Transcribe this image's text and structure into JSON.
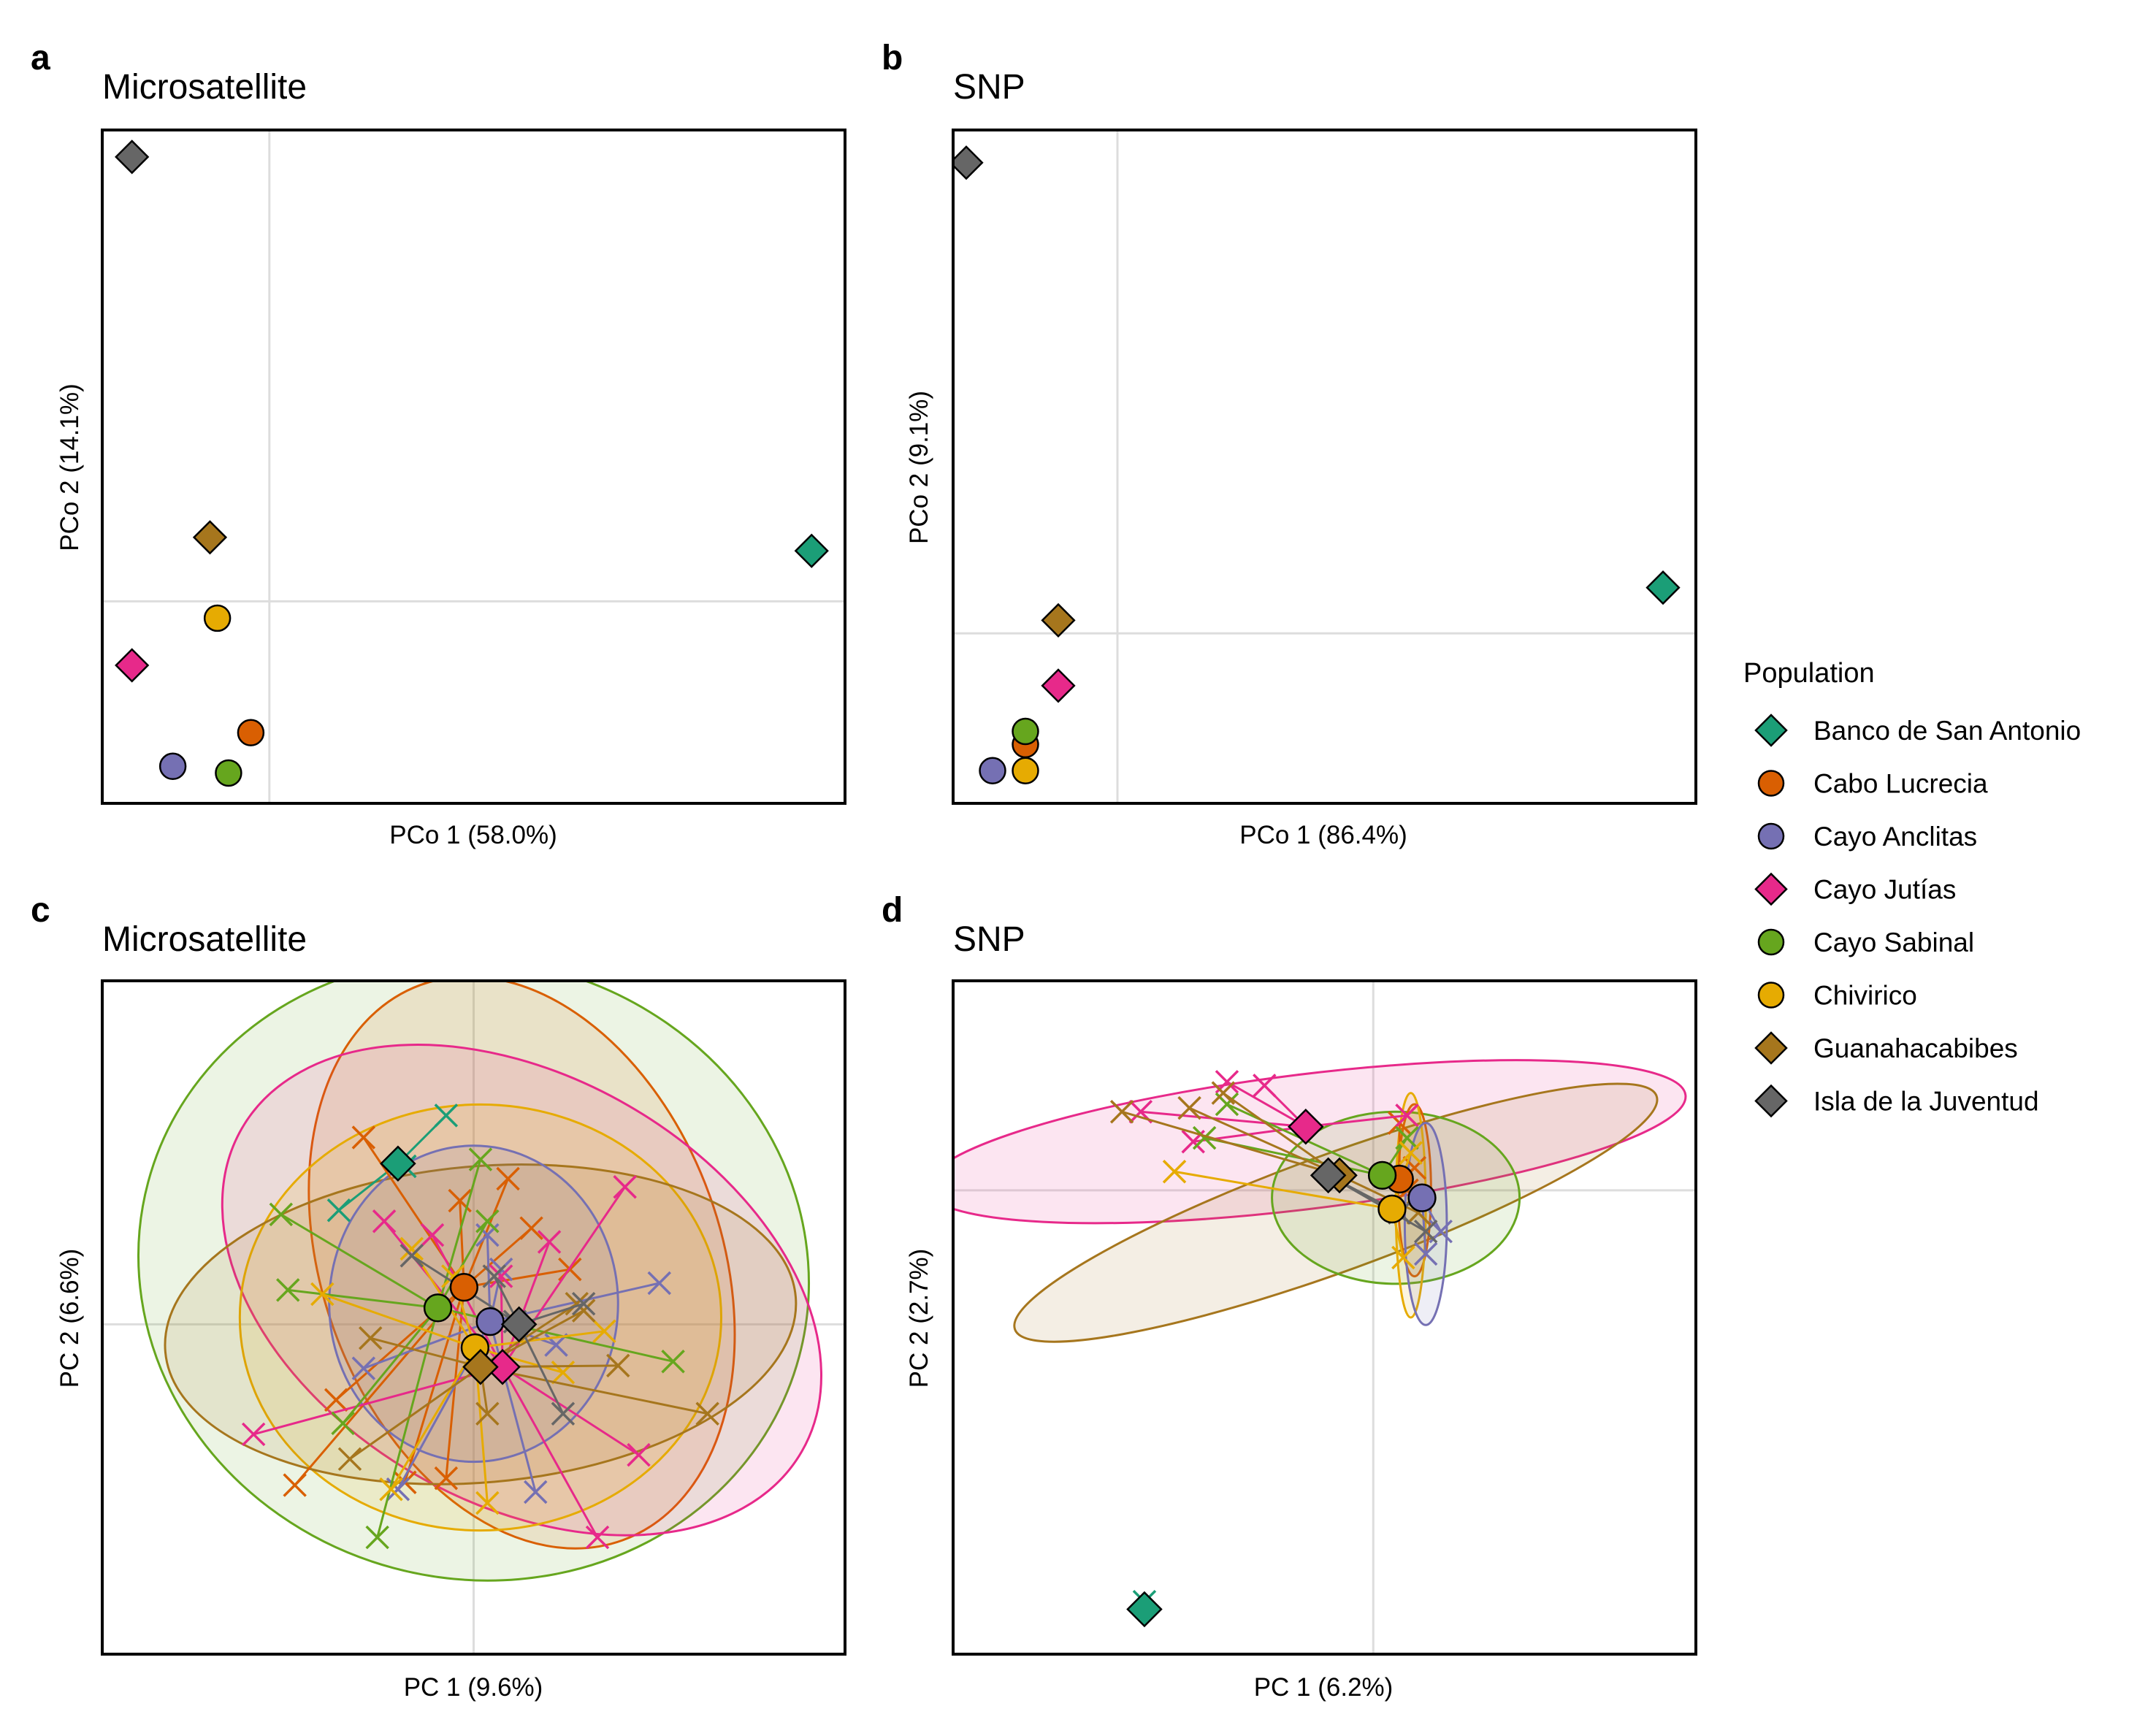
{
  "colors": {
    "Banco de San Antonio": "#1b9e77",
    "Cabo Lucrecia": "#d95f02",
    "Cayo Anclitas": "#7570b3",
    "Cayo Jutías": "#e7298a",
    "Cayo Sabinal": "#66a61e",
    "Chivirico": "#e6ab02",
    "Guanahacabibes": "#a6761d",
    "Isla de la Juventud": "#666666"
  },
  "legend": {
    "title": "Population",
    "items": [
      {
        "label": "Banco de San Antonio",
        "shape": "diamond"
      },
      {
        "label": "Cabo Lucrecia",
        "shape": "circle"
      },
      {
        "label": "Cayo Anclitas",
        "shape": "circle"
      },
      {
        "label": "Cayo Jutías",
        "shape": "diamond"
      },
      {
        "label": "Cayo Sabinal",
        "shape": "circle"
      },
      {
        "label": "Chivirico",
        "shape": "circle"
      },
      {
        "label": "Guanahacabibes",
        "shape": "diamond"
      },
      {
        "label": "Isla de la Juventud",
        "shape": "diamond"
      }
    ]
  },
  "chart_data": [
    {
      "panel": "a",
      "type": "scatter",
      "title": "Microsatellite",
      "xlabel": "PCo 1 (58.0%)",
      "ylabel": "PCo 2 (14.1%)",
      "xlim": [
        -0.45,
        1.55
      ],
      "ylim": [
        -0.6,
        1.4
      ],
      "grid": "zero-lines",
      "points": [
        {
          "pop": "Banco de San Antonio",
          "x": 1.46,
          "y": 0.15
        },
        {
          "pop": "Cabo Lucrecia",
          "x": -0.05,
          "y": -0.39
        },
        {
          "pop": "Cayo Anclitas",
          "x": -0.26,
          "y": -0.49
        },
        {
          "pop": "Cayo Jutías",
          "x": -0.37,
          "y": -0.19
        },
        {
          "pop": "Cayo Sabinal",
          "x": -0.11,
          "y": -0.51
        },
        {
          "pop": "Chivirico",
          "x": -0.14,
          "y": -0.05
        },
        {
          "pop": "Guanahacabibes",
          "x": -0.16,
          "y": 0.19
        },
        {
          "pop": "Isla de la Juventud",
          "x": -0.37,
          "y": 1.32
        }
      ]
    },
    {
      "panel": "b",
      "type": "scatter",
      "title": "SNP",
      "xlabel": "PCo 1 (86.4%)",
      "ylabel": "PCo 2 (9.1%)",
      "xlim": [
        -0.25,
        0.88
      ],
      "ylim": [
        -0.26,
        0.77
      ],
      "grid": "zero-lines",
      "points": [
        {
          "pop": "Banco de San Antonio",
          "x": 0.83,
          "y": 0.07
        },
        {
          "pop": "Cabo Lucrecia",
          "x": -0.14,
          "y": -0.17
        },
        {
          "pop": "Cayo Anclitas",
          "x": -0.19,
          "y": -0.21
        },
        {
          "pop": "Cayo Jutías",
          "x": -0.09,
          "y": -0.08
        },
        {
          "pop": "Cayo Sabinal",
          "x": -0.14,
          "y": -0.15
        },
        {
          "pop": "Chivirico",
          "x": -0.14,
          "y": -0.21
        },
        {
          "pop": "Guanahacabibes",
          "x": -0.09,
          "y": 0.02
        },
        {
          "pop": "Isla de la Juventud",
          "x": -0.23,
          "y": 0.72
        }
      ]
    },
    {
      "panel": "c",
      "type": "scatter",
      "title": "Microsatellite",
      "xlabel": "PC 1 (9.6%)",
      "ylabel": "PC 2 (6.6%)",
      "xlim": [
        -2.7,
        2.7
      ],
      "ylim": [
        -2.4,
        2.5
      ],
      "grid": "zero-lines",
      "centroids": [
        {
          "pop": "Banco de San Antonio",
          "x": -0.55,
          "y": 1.17
        },
        {
          "pop": "Cabo Lucrecia",
          "x": -0.07,
          "y": 0.27
        },
        {
          "pop": "Cayo Anclitas",
          "x": 0.12,
          "y": 0.02
        },
        {
          "pop": "Cayo Jutías",
          "x": 0.21,
          "y": -0.31
        },
        {
          "pop": "Cayo Sabinal",
          "x": -0.26,
          "y": 0.12
        },
        {
          "pop": "Chivirico",
          "x": 0.01,
          "y": -0.17
        },
        {
          "pop": "Guanahacabibes",
          "x": 0.05,
          "y": -0.31
        },
        {
          "pop": "Isla de la Juventud",
          "x": 0.33,
          "y": 0.0
        }
      ],
      "ellipses": [
        {
          "pop": "Cayo Sabinal",
          "cx": 0.0,
          "cy": 0.4,
          "rx": 2.45,
          "ry": 2.25,
          "angle": -15
        },
        {
          "pop": "Cabo Lucrecia",
          "cx": 0.35,
          "cy": 0.45,
          "rx": 1.45,
          "ry": 2.15,
          "angle": 20
        },
        {
          "pop": "Cayo Jutías",
          "cx": 0.35,
          "cy": 0.25,
          "rx": 2.35,
          "ry": 1.55,
          "angle": -30
        },
        {
          "pop": "Chivirico",
          "cx": 0.05,
          "cy": 0.05,
          "rx": 1.75,
          "ry": 1.55,
          "angle": 0
        },
        {
          "pop": "Guanahacabibes",
          "cx": 0.05,
          "cy": 0.0,
          "rx": 2.3,
          "ry": 1.15,
          "angle": 5
        },
        {
          "pop": "Cayo Anclitas",
          "cx": 0.0,
          "cy": 0.15,
          "rx": 1.05,
          "ry": 1.15,
          "angle": 0
        }
      ],
      "samples": [
        {
          "pop": "Banco de San Antonio",
          "pts": [
            [
              -0.2,
              1.52
            ],
            [
              -0.98,
              0.83
            ],
            [
              -0.5,
              1.15
            ]
          ]
        },
        {
          "pop": "Cabo Lucrecia",
          "pts": [
            [
              -0.8,
              1.36
            ],
            [
              0.25,
              1.06
            ],
            [
              0.7,
              0.4
            ],
            [
              -1.0,
              -0.55
            ],
            [
              -1.3,
              -1.17
            ],
            [
              -0.5,
              -1.15
            ],
            [
              -0.2,
              -1.12
            ],
            [
              0.42,
              0.7
            ],
            [
              -0.1,
              0.9
            ]
          ]
        },
        {
          "pop": "Cayo Anclitas",
          "pts": [
            [
              0.1,
              0.65
            ],
            [
              1.35,
              0.3
            ],
            [
              -0.8,
              -0.32
            ],
            [
              0.6,
              -0.15
            ],
            [
              -0.55,
              -1.2
            ],
            [
              0.45,
              -1.22
            ],
            [
              0.2,
              0.4
            ]
          ]
        },
        {
          "pop": "Cayo Jutías",
          "pts": [
            [
              -0.65,
              0.75
            ],
            [
              0.2,
              0.35
            ],
            [
              1.1,
              1.0
            ],
            [
              -1.6,
              -0.8
            ],
            [
              1.2,
              -0.95
            ],
            [
              0.9,
              -1.55
            ],
            [
              -0.3,
              0.65
            ],
            [
              0.55,
              0.6
            ]
          ]
        },
        {
          "pop": "Cayo Sabinal",
          "pts": [
            [
              -1.4,
              0.8
            ],
            [
              -1.35,
              0.25
            ],
            [
              0.05,
              1.2
            ],
            [
              1.45,
              -0.27
            ],
            [
              -0.95,
              -0.72
            ],
            [
              -0.7,
              -1.55
            ],
            [
              0.1,
              0.75
            ]
          ]
        },
        {
          "pop": "Chivirico",
          "pts": [
            [
              -1.1,
              0.22
            ],
            [
              -0.15,
              0.35
            ],
            [
              0.95,
              -0.05
            ],
            [
              0.65,
              -0.35
            ],
            [
              -0.6,
              -1.2
            ],
            [
              0.1,
              -1.3
            ],
            [
              -0.45,
              0.55
            ]
          ]
        },
        {
          "pop": "Guanahacabibes",
          "pts": [
            [
              -0.75,
              -0.1
            ],
            [
              0.75,
              0.15
            ],
            [
              0.1,
              -0.65
            ],
            [
              -0.9,
              -0.98
            ],
            [
              1.7,
              -0.65
            ],
            [
              1.05,
              -0.3
            ],
            [
              0.8,
              0.1
            ]
          ]
        },
        {
          "pop": "Isla de la Juventud",
          "pts": [
            [
              -0.45,
              0.5
            ],
            [
              0.65,
              -0.65
            ],
            [
              0.3,
              0.02
            ],
            [
              0.15,
              0.35
            ],
            [
              0.8,
              0.15
            ]
          ]
        }
      ]
    },
    {
      "panel": "d",
      "type": "scatter",
      "title": "SNP",
      "xlabel": "PC 1 (6.2%)",
      "ylabel": "PC 2 (2.7%)",
      "xlim": [
        -5.6,
        4.3
      ],
      "ylim": [
        -6.2,
        2.8
      ],
      "grid": "zero-lines",
      "centroids": [
        {
          "pop": "Banco de San Antonio",
          "x": -3.05,
          "y": -5.6
        },
        {
          "pop": "Cabo Lucrecia",
          "x": 0.35,
          "y": 0.15
        },
        {
          "pop": "Cayo Anclitas",
          "x": 0.65,
          "y": -0.1
        },
        {
          "pop": "Cayo Jutías",
          "x": -0.9,
          "y": 0.85
        },
        {
          "pop": "Cayo Sabinal",
          "x": 0.12,
          "y": 0.2
        },
        {
          "pop": "Chivirico",
          "x": 0.25,
          "y": -0.25
        },
        {
          "pop": "Guanahacabibes",
          "x": -0.45,
          "y": 0.2
        },
        {
          "pop": "Isla de la Juventud",
          "x": -0.6,
          "y": 0.2
        }
      ],
      "ellipses": [
        {
          "pop": "Cayo Jutías",
          "cx": -0.9,
          "cy": 0.65,
          "rx": 5.1,
          "ry": 0.9,
          "angle": 7
        },
        {
          "pop": "Guanahacabibes",
          "cx": -0.5,
          "cy": -0.3,
          "rx": 4.55,
          "ry": 0.78,
          "angle": 20
        },
        {
          "pop": "Cayo Sabinal",
          "cx": 0.3,
          "cy": -0.1,
          "rx": 1.65,
          "ry": 1.15,
          "angle": 0
        },
        {
          "pop": "Cabo Lucrecia",
          "cx": 0.55,
          "cy": 0.0,
          "rx": 0.22,
          "ry": 1.15,
          "angle": 0
        },
        {
          "pop": "Chivirico",
          "cx": 0.5,
          "cy": -0.2,
          "rx": 0.2,
          "ry": 1.5,
          "angle": 0
        },
        {
          "pop": "Cayo Anclitas",
          "cx": 0.7,
          "cy": -0.45,
          "rx": 0.28,
          "ry": 1.35,
          "angle": 0
        }
      ],
      "samples": [
        {
          "pop": "Banco de San Antonio",
          "pts": [
            [
              -3.05,
              -5.5
            ]
          ]
        },
        {
          "pop": "Cabo Lucrecia",
          "pts": [
            [
              0.35,
              0.9
            ],
            [
              0.55,
              0.3
            ],
            [
              0.45,
              0.0
            ]
          ]
        },
        {
          "pop": "Cayo Anclitas",
          "pts": [
            [
              0.9,
              -0.55
            ],
            [
              0.7,
              -0.85
            ]
          ]
        },
        {
          "pop": "Cayo Jutías",
          "pts": [
            [
              -1.95,
              1.45
            ],
            [
              -1.45,
              1.4
            ],
            [
              -3.1,
              1.05
            ],
            [
              -2.4,
              0.65
            ],
            [
              0.45,
              1.0
            ]
          ]
        },
        {
          "pop": "Cayo Sabinal",
          "pts": [
            [
              -2.25,
              0.7
            ],
            [
              -1.95,
              1.15
            ],
            [
              0.45,
              0.7
            ]
          ]
        },
        {
          "pop": "Chivirico",
          "pts": [
            [
              -2.65,
              0.25
            ],
            [
              0.4,
              -0.9
            ],
            [
              0.5,
              0.5
            ]
          ]
        },
        {
          "pop": "Guanahacabibes",
          "pts": [
            [
              -3.35,
              1.05
            ],
            [
              -2.45,
              1.1
            ],
            [
              -2.0,
              1.3
            ],
            [
              0.6,
              -0.3
            ]
          ]
        },
        {
          "pop": "Isla de la Juventud",
          "pts": [
            [
              0.7,
              -0.55
            ],
            [
              0.35,
              -0.3
            ]
          ]
        }
      ]
    }
  ]
}
